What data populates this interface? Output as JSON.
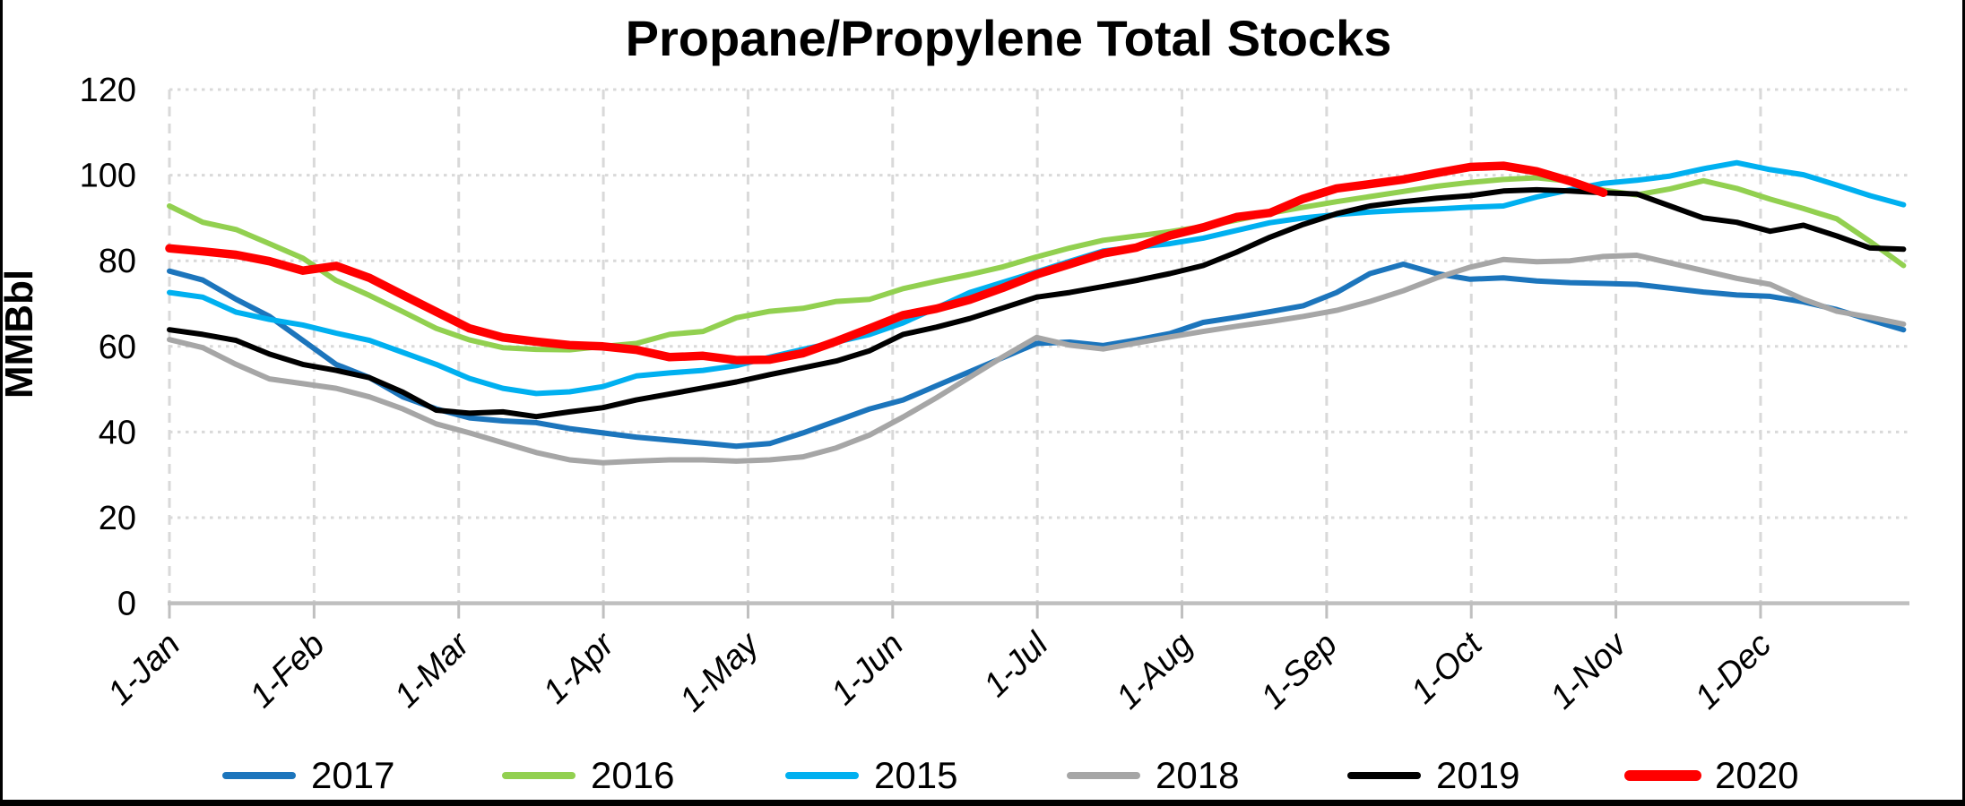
{
  "title": "Propane/Propylene Total Stocks",
  "y_axis": {
    "title": "MMBbl",
    "ticks": [
      0,
      20,
      40,
      60,
      80,
      100,
      120
    ],
    "min": 0,
    "max": 120
  },
  "x_axis": {
    "labels": [
      "1-Jan",
      "1-Feb",
      "1-Mar",
      "1-Apr",
      "1-May",
      "1-Jun",
      "1-Jul",
      "1-Aug",
      "1-Sep",
      "1-Oct",
      "1-Nov",
      "1-Dec"
    ]
  },
  "legend": [
    {
      "label": "2017",
      "color": "#1C75BC",
      "swatch_width": 8
    },
    {
      "label": "2016",
      "color": "#92D050",
      "swatch_width": 8
    },
    {
      "label": "2015",
      "color": "#00B0F0",
      "swatch_width": 8
    },
    {
      "label": "2018",
      "color": "#A6A6A6",
      "swatch_width": 8
    },
    {
      "label": "2019",
      "color": "#000000",
      "swatch_width": 8
    },
    {
      "label": "2020",
      "color": "#FF0000",
      "swatch_width": 12
    }
  ],
  "chart_data": {
    "type": "line",
    "title": "Propane/Propylene Total Stocks",
    "xlabel": "",
    "ylabel": "MMBbl",
    "ylim": [
      0,
      120
    ],
    "x_interval": "weekly",
    "x_start": "1-Jan",
    "grid": true,
    "legend_position": "bottom",
    "series": [
      {
        "name": "2017",
        "color": "#1C75BC",
        "stroke_width": 6,
        "values": [
          77.6,
          75.5,
          71.0,
          67.0,
          61.4,
          55.8,
          52.7,
          48.2,
          45.4,
          43.3,
          42.6,
          42.2,
          40.8,
          39.8,
          38.8,
          38.1,
          37.4,
          36.7,
          37.3,
          39.8,
          42.6,
          45.4,
          47.5,
          50.8,
          54.1,
          57.4,
          60.7,
          61.0,
          60.2,
          61.5,
          63.0,
          65.6,
          66.8,
          68.1,
          69.5,
          72.6,
          77.0,
          79.2,
          77.0,
          75.7,
          76.0,
          75.3,
          74.9,
          74.7,
          74.5,
          73.6,
          72.7,
          72.0,
          71.7,
          70.4,
          68.6,
          66.2,
          63.9
        ]
      },
      {
        "name": "2016",
        "color": "#92D050",
        "stroke_width": 6,
        "values": [
          92.8,
          89.0,
          87.3,
          84.0,
          80.6,
          75.4,
          71.9,
          68.1,
          64.2,
          61.5,
          59.7,
          59.3,
          59.2,
          60.0,
          60.7,
          62.8,
          63.5,
          66.7,
          68.2,
          68.9,
          70.5,
          71.0,
          73.5,
          75.2,
          76.8,
          78.6,
          80.9,
          83.0,
          84.8,
          85.8,
          86.8,
          88.0,
          89.5,
          91.1,
          92.5,
          93.8,
          95.0,
          96.2,
          97.4,
          98.3,
          99.0,
          99.4,
          98.6,
          96.5,
          95.4,
          96.8,
          98.7,
          96.9,
          94.4,
          92.2,
          89.8,
          84.5,
          78.9
        ]
      },
      {
        "name": "2015",
        "color": "#00B0F0",
        "stroke_width": 6,
        "values": [
          72.6,
          71.5,
          68.0,
          66.3,
          65.0,
          63.1,
          61.4,
          58.6,
          55.8,
          52.5,
          50.2,
          49.0,
          49.4,
          50.6,
          53.1,
          53.8,
          54.4,
          55.5,
          57.5,
          59.3,
          61.0,
          62.8,
          65.5,
          69.0,
          72.6,
          75.0,
          77.4,
          79.9,
          82.3,
          83.2,
          84.0,
          85.3,
          87.1,
          88.9,
          90.0,
          90.8,
          91.4,
          91.8,
          92.1,
          92.5,
          92.8,
          94.9,
          96.6,
          98.1,
          98.8,
          99.8,
          101.5,
          102.9,
          101.3,
          100.1,
          97.7,
          95.2,
          93.1
        ]
      },
      {
        "name": "2018",
        "color": "#A6A6A6",
        "stroke_width": 6,
        "values": [
          61.6,
          59.7,
          55.8,
          52.4,
          51.3,
          50.2,
          48.2,
          45.4,
          41.9,
          39.8,
          37.5,
          35.2,
          33.5,
          32.8,
          33.2,
          33.5,
          33.5,
          33.2,
          33.5,
          34.2,
          36.3,
          39.3,
          43.5,
          48.0,
          52.8,
          57.6,
          62.1,
          60.3,
          59.4,
          60.8,
          62.2,
          63.5,
          64.7,
          65.8,
          67.0,
          68.4,
          70.5,
          73.0,
          76.0,
          78.5,
          80.3,
          79.8,
          80.0,
          81.0,
          81.3,
          79.5,
          77.7,
          75.9,
          74.5,
          71.0,
          68.2,
          66.8,
          65.2
        ]
      },
      {
        "name": "2019",
        "color": "#000000",
        "stroke_width": 6,
        "values": [
          63.9,
          62.8,
          61.4,
          58.2,
          55.8,
          54.4,
          52.7,
          49.3,
          45.1,
          44.4,
          44.7,
          43.6,
          44.7,
          45.7,
          47.5,
          48.9,
          50.3,
          51.7,
          53.4,
          55.0,
          56.6,
          59.0,
          62.8,
          64.5,
          66.5,
          69.0,
          71.5,
          72.6,
          74.0,
          75.4,
          77.0,
          78.9,
          82.0,
          85.5,
          88.5,
          91.0,
          92.8,
          93.8,
          94.6,
          95.2,
          96.3,
          96.6,
          96.3,
          95.9,
          95.6,
          92.8,
          90.0,
          89.0,
          86.9,
          88.3,
          85.8,
          83.0,
          82.7
        ]
      },
      {
        "name": "2020",
        "color": "#FF0000",
        "stroke_width": 9.5,
        "values": [
          82.9,
          82.2,
          81.4,
          79.9,
          77.7,
          78.8,
          76.0,
          72.0,
          68.1,
          64.2,
          62.1,
          61.1,
          60.3,
          60.0,
          59.2,
          57.5,
          57.8,
          56.8,
          56.9,
          58.4,
          61.2,
          64.2,
          67.3,
          68.8,
          70.9,
          73.7,
          76.8,
          79.2,
          81.7,
          83.1,
          85.9,
          87.8,
          90.2,
          91.2,
          94.5,
          96.9,
          97.9,
          99.0,
          100.5,
          101.9,
          102.2,
          100.9,
          98.6,
          95.9
        ]
      }
    ]
  }
}
